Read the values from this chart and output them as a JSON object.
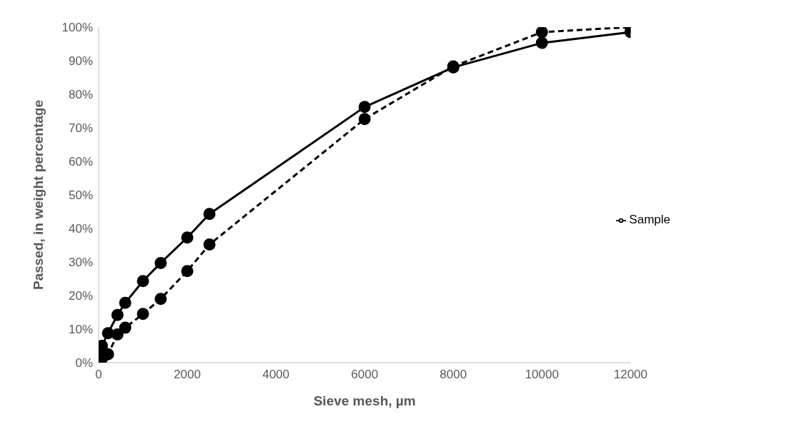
{
  "chart_data": {
    "type": "line",
    "xlabel": "Sieve mesh, µm",
    "ylabel": "Passed, in weight percentage",
    "xlim": [
      0,
      12000
    ],
    "xticks": [
      0,
      2000,
      4000,
      6000,
      8000,
      10000,
      12000
    ],
    "ylim": [
      0,
      100
    ],
    "yticks": [
      {
        "value": 0,
        "label": "0%"
      },
      {
        "value": 10,
        "label": "10%"
      },
      {
        "value": 20,
        "label": "20%"
      },
      {
        "value": 30,
        "label": "30%"
      },
      {
        "value": 40,
        "label": "40%"
      },
      {
        "value": 50,
        "label": "50%"
      },
      {
        "value": 60,
        "label": "60%"
      },
      {
        "value": 70,
        "label": "70%"
      },
      {
        "value": 80,
        "label": "80%"
      },
      {
        "value": 90,
        "label": "90%"
      },
      {
        "value": 100,
        "label": "100%"
      }
    ],
    "grid": false,
    "legend": "right",
    "marker": "circle",
    "series": [
      {
        "name": "Sample",
        "color": "#000000",
        "line_style": "dashed",
        "x": [
          45,
          75,
          150,
          212,
          425,
          600,
          1000,
          1400,
          2000,
          2500,
          6000,
          8000,
          10000,
          12000
        ],
        "values": [
          0.5,
          1.2,
          2.5,
          2.5,
          8.4,
          10.4,
          14.5,
          19,
          27.3,
          35.2,
          72.6,
          88.3,
          98.5,
          100
        ]
      },
      {
        "color": "#000000",
        "line_style": "solid",
        "x": [
          45,
          63,
          75,
          212,
          425,
          600,
          1000,
          1400,
          2000,
          2500,
          6000,
          8000,
          10000,
          12000
        ],
        "values": [
          1,
          3,
          5,
          8.8,
          14.2,
          17.8,
          24.3,
          29.7,
          37.3,
          44.3,
          76.2,
          88,
          95.3,
          98.5
        ]
      }
    ]
  }
}
